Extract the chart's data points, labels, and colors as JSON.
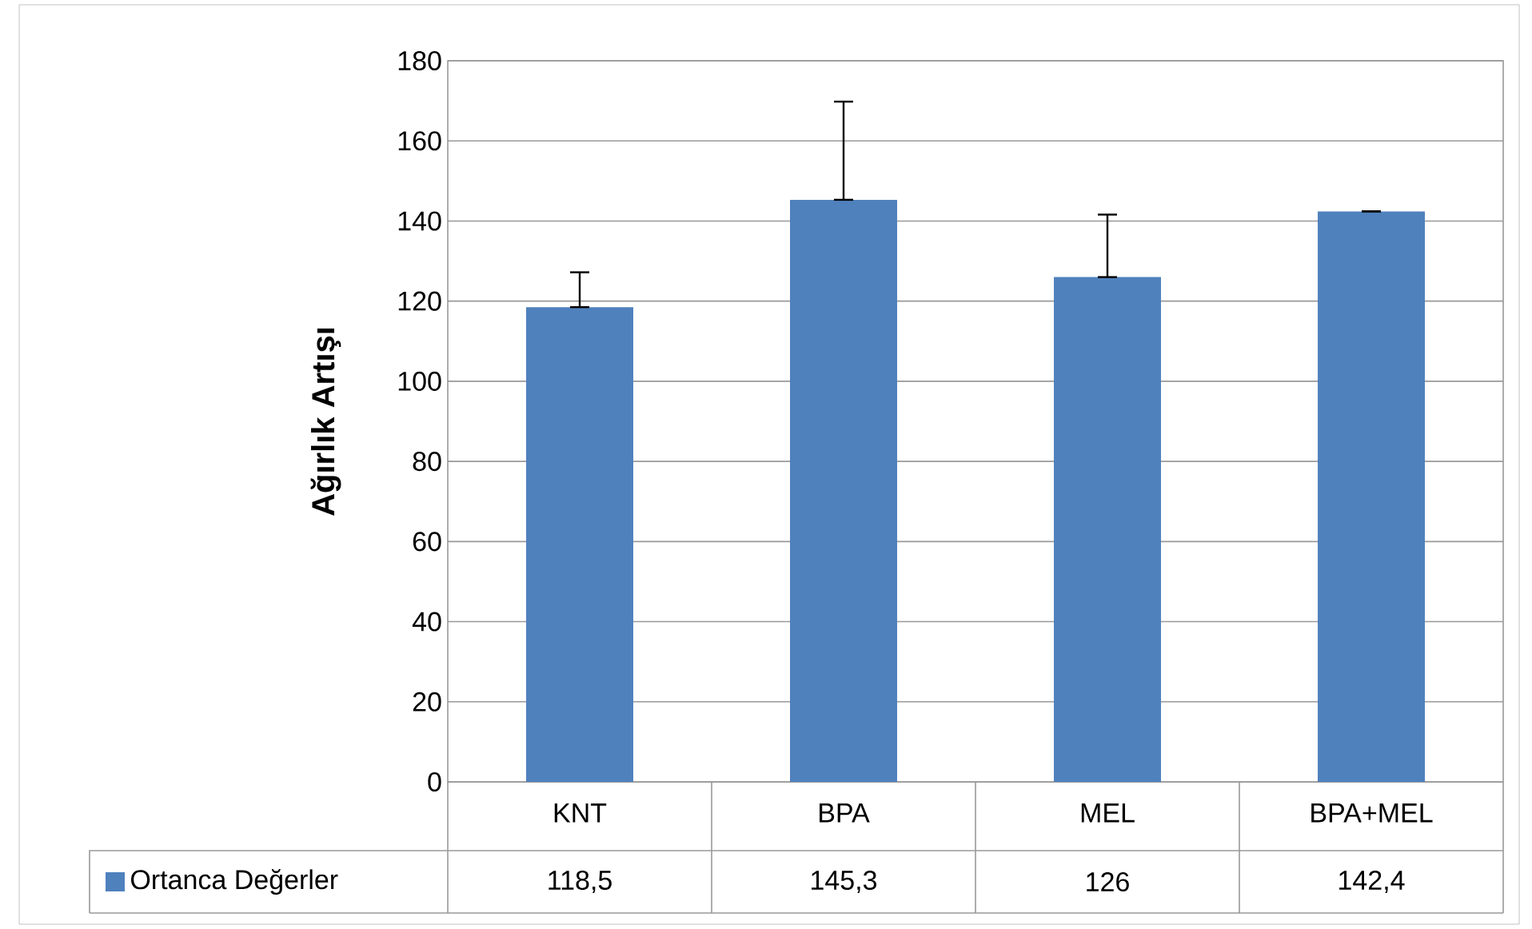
{
  "chart_data": {
    "type": "bar",
    "ylabel": "Ağırlık Artışı",
    "categories": [
      "KNT",
      "BPA",
      "MEL",
      "BPA+MEL"
    ],
    "series": [
      {
        "name": "Ortanca Değerler",
        "color": "#4f81bd",
        "values": [
          118.5,
          145.3,
          126,
          142.4
        ],
        "errors": [
          [
            118.5,
            127.2
          ],
          [
            145.3,
            169.8
          ],
          [
            126,
            141.6
          ],
          [
            142.4,
            142.4
          ]
        ],
        "value_labels": [
          "118,5",
          "145,3",
          "126",
          "142,4"
        ]
      }
    ],
    "ylim": [
      0,
      180
    ],
    "yticks": [
      0,
      20,
      40,
      60,
      80,
      100,
      120,
      140,
      160,
      180
    ],
    "grid": "y",
    "legend": "bottom"
  }
}
